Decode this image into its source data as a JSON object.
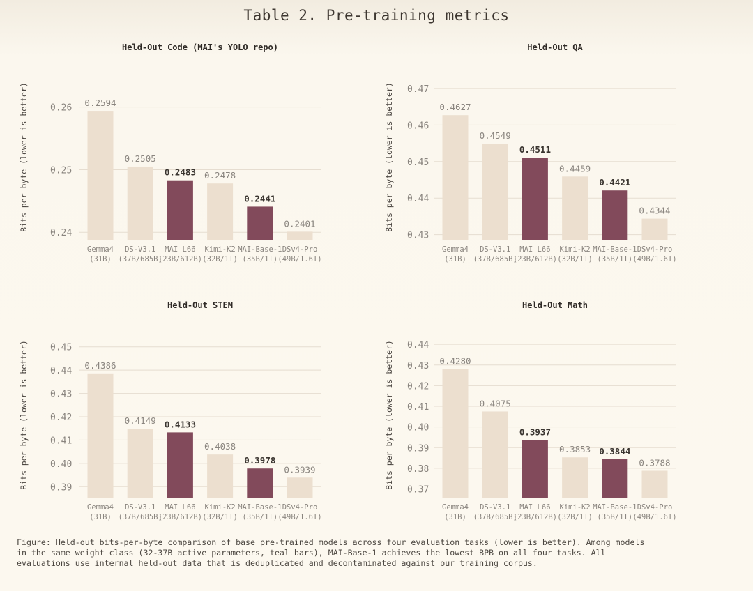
{
  "page": {
    "title": "Table 2. Pre-training metrics",
    "caption": "Figure: Held-out bits-per-byte comparison of base pre-trained models across four evaluation tasks (lower is better). Among models\nin the same weight class (32-37B active parameters, teal bars), MAI-Base-1 achieves the lowest BPB on all four tasks. All\nevaluations use internal held-out data that is deduplicated and decontaminated against our training corpus."
  },
  "colors": {
    "highlight_bar": "#824a5b",
    "other_bar": "#ecdfcf",
    "grid": "#e6ddd0",
    "axis_text": "#8a857f"
  },
  "chart_data": [
    {
      "type": "bar",
      "title": "Held-Out Code (MAI's YOLO repo)",
      "ylabel": "Bits per byte (lower is better)",
      "categories": [
        [
          "Gemma4",
          "(31B)"
        ],
        [
          "DS-V3.1",
          "(37B/685B)"
        ],
        [
          "MAI L66",
          "(23B/612B)"
        ],
        [
          "Kimi-K2",
          "(32B/1T)"
        ],
        [
          "MAI-Base-1",
          "(35B/1T)"
        ],
        [
          "DSv4-Pro",
          "(49B/1.6T)"
        ]
      ],
      "values": [
        0.2594,
        0.2505,
        0.2483,
        0.2478,
        0.2441,
        0.2401
      ],
      "value_labels": [
        "0.2594",
        "0.2505",
        "0.2483",
        "0.2478",
        "0.2441",
        "0.2401"
      ],
      "highlighted": [
        false,
        false,
        true,
        false,
        true,
        false
      ],
      "yticks": [
        0.26,
        0.25,
        0.24
      ],
      "ytick_labels": [
        "0.26",
        "0.25",
        "0.24"
      ],
      "ylim": [
        0.2388,
        0.2652
      ],
      "grid": true
    },
    {
      "type": "bar",
      "title": "Held-Out QA",
      "ylabel": "Bits per byte (lower is better)",
      "categories": [
        [
          "Gemma4",
          "(31B)"
        ],
        [
          "DS-V3.1",
          "(37B/685B)"
        ],
        [
          "MAI L66",
          "(23B/612B)"
        ],
        [
          "Kimi-K2",
          "(32B/1T)"
        ],
        [
          "MAI-Base-1",
          "(35B/1T)"
        ],
        [
          "DSv4-Pro",
          "(49B/1.6T)"
        ]
      ],
      "values": [
        0.4627,
        0.4549,
        0.4511,
        0.4459,
        0.4421,
        0.4344
      ],
      "value_labels": [
        "0.4627",
        "0.4549",
        "0.4511",
        "0.4459",
        "0.4421",
        "0.4344"
      ],
      "highlighted": [
        false,
        false,
        true,
        false,
        true,
        false
      ],
      "yticks": [
        0.47,
        0.46,
        0.45,
        0.44,
        0.43
      ],
      "ytick_labels": [
        "0.47",
        "0.46",
        "0.45",
        "0.44",
        "0.43"
      ],
      "ylim": [
        0.4286,
        0.4738
      ],
      "grid": true
    },
    {
      "type": "bar",
      "title": "Held-Out STEM",
      "ylabel": "Bits per byte (lower is better)",
      "categories": [
        [
          "Gemma4",
          "(31B)"
        ],
        [
          "DS-V3.1",
          "(37B/685B)"
        ],
        [
          "MAI L66",
          "(23B/612B)"
        ],
        [
          "Kimi-K2",
          "(32B/1T)"
        ],
        [
          "MAI-Base-1",
          "(35B/1T)"
        ],
        [
          "DSv4-Pro",
          "(49B/1.6T)"
        ]
      ],
      "values": [
        0.4386,
        0.4149,
        0.4133,
        0.4038,
        0.3978,
        0.3939
      ],
      "value_labels": [
        "0.4386",
        "0.4149",
        "0.4133",
        "0.4038",
        "0.3978",
        "0.3939"
      ],
      "highlighted": [
        false,
        false,
        true,
        false,
        true,
        false
      ],
      "yticks": [
        0.45,
        0.44,
        0.43,
        0.42,
        0.41,
        0.4,
        0.39
      ],
      "ytick_labels": [
        "0.45",
        "0.44",
        "0.43",
        "0.42",
        "0.41",
        "0.40",
        "0.39"
      ],
      "ylim": [
        0.3853,
        0.4562
      ],
      "grid": true
    },
    {
      "type": "bar",
      "title": "Held-Out Math",
      "ylabel": "Bits per byte (lower is better)",
      "categories": [
        [
          "Gemma4",
          "(31B)"
        ],
        [
          "DS-V3.1",
          "(37B/685B)"
        ],
        [
          "MAI L66",
          "(23B/612B)"
        ],
        [
          "Kimi-K2",
          "(32B/1T)"
        ],
        [
          "MAI-Base-1",
          "(35B/1T)"
        ],
        [
          "DSv4-Pro",
          "(49B/1.6T)"
        ]
      ],
      "values": [
        0.428,
        0.4075,
        0.3937,
        0.3853,
        0.3844,
        0.3788
      ],
      "value_labels": [
        "0.4280",
        "0.4075",
        "0.3937",
        "0.3853",
        "0.3844",
        "0.3788"
      ],
      "highlighted": [
        false,
        false,
        true,
        false,
        true,
        false
      ],
      "yticks": [
        0.44,
        0.43,
        0.42,
        0.41,
        0.4,
        0.39,
        0.38,
        0.37
      ],
      "ytick_labels": [
        "0.44",
        "0.43",
        "0.42",
        "0.41",
        "0.40",
        "0.39",
        "0.38",
        "0.37"
      ],
      "ylim": [
        0.3658,
        0.4458
      ],
      "grid": true
    }
  ]
}
